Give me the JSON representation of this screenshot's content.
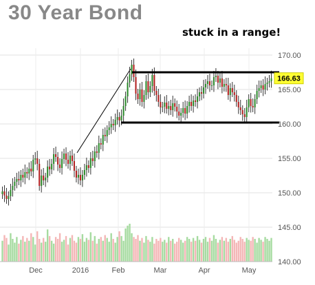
{
  "chart_data": {
    "type": "candlestick",
    "title": "30 Year Bond",
    "annotation": "stuck in a range!",
    "price_label": "166.63",
    "y_ticks": [
      "170.00",
      "165.00",
      "160.00",
      "155.00",
      "150.00",
      "145.00",
      "140.00"
    ],
    "x_ticks": [
      "Dec",
      "2016",
      "Feb",
      "Mar",
      "Apr",
      "May"
    ],
    "ylim": [
      140,
      171
    ],
    "closes": [
      150.2,
      149.6,
      149.1,
      149.5,
      150.4,
      151.0,
      151.6,
      152.0,
      151.8,
      152.6,
      152.2,
      153.0,
      152.8,
      153.5,
      153.1,
      154.8,
      155.0,
      154.2,
      151.0,
      152.5,
      151.8,
      152.2,
      153.8,
      153.4,
      154.2,
      155.6,
      155.2,
      154.1,
      153.6,
      154.9,
      155.7,
      154.8,
      154.2,
      155.4,
      154.6,
      153.2,
      152.2,
      152.6,
      151.8,
      152.6,
      153.3,
      154.0,
      153.6,
      155.0,
      154.6,
      156.0,
      155.8,
      157.2,
      157.0,
      158.4,
      158.2,
      159.1,
      159.5,
      160.0,
      159.8,
      160.6,
      161.0,
      160.5,
      161.2,
      162.6,
      164.0,
      166.0,
      167.2,
      168.6,
      166.8,
      164.4,
      163.6,
      165.0,
      163.2,
      164.2,
      166.2,
      164.6,
      165.5,
      167.1,
      164.8,
      164.2,
      163.2,
      162.4,
      162.5,
      163.1,
      162.2,
      162.6,
      162.0,
      163.0,
      162.5,
      161.8,
      161.2,
      161.6,
      162.3,
      161.5,
      162.6,
      163.2,
      162.6,
      163.4,
      163.2,
      164.0,
      164.6,
      164.4,
      165.3,
      165.8,
      166.2,
      165.6,
      165.6,
      166.8,
      167.0,
      166.0,
      166.6,
      165.4,
      165.8,
      165.6,
      164.2,
      165.2,
      164.6,
      164.2,
      163.2,
      162.4,
      162.0,
      161.4,
      161.0,
      162.4,
      163.6,
      162.6,
      162.4,
      163.6,
      164.8,
      165.2,
      165.6,
      165.0,
      165.8,
      166.0,
      166.2,
      166.63
    ],
    "support": 160.2,
    "resistance": 167.5,
    "volume": [
      22,
      28,
      25,
      18,
      30,
      24,
      20,
      26,
      19,
      23,
      27,
      21,
      25,
      22,
      30,
      26,
      18,
      32,
      24,
      20,
      25,
      21,
      34,
      27,
      22,
      19,
      26,
      24,
      30,
      21,
      23,
      27,
      18,
      25,
      28,
      22,
      20,
      26,
      24,
      29,
      21,
      25,
      23,
      31,
      22,
      27,
      19,
      24,
      26,
      22,
      28,
      25,
      21,
      30,
      24,
      20,
      26,
      32,
      27,
      22,
      35,
      38,
      40,
      30,
      26,
      24,
      28,
      22,
      25,
      20,
      27,
      23,
      21,
      26,
      19,
      24,
      22,
      25,
      21,
      23,
      20,
      26,
      22,
      24,
      19,
      21,
      25,
      23,
      20,
      22,
      26,
      24,
      21,
      25,
      22,
      27,
      23,
      20,
      24,
      26,
      21,
      25,
      22,
      28,
      24,
      20,
      23,
      26,
      22,
      25,
      21,
      24,
      27,
      23,
      20,
      22,
      26,
      24,
      21,
      25,
      23,
      22,
      26,
      24,
      20,
      25,
      23,
      21,
      26,
      24,
      22,
      25
    ]
  }
}
